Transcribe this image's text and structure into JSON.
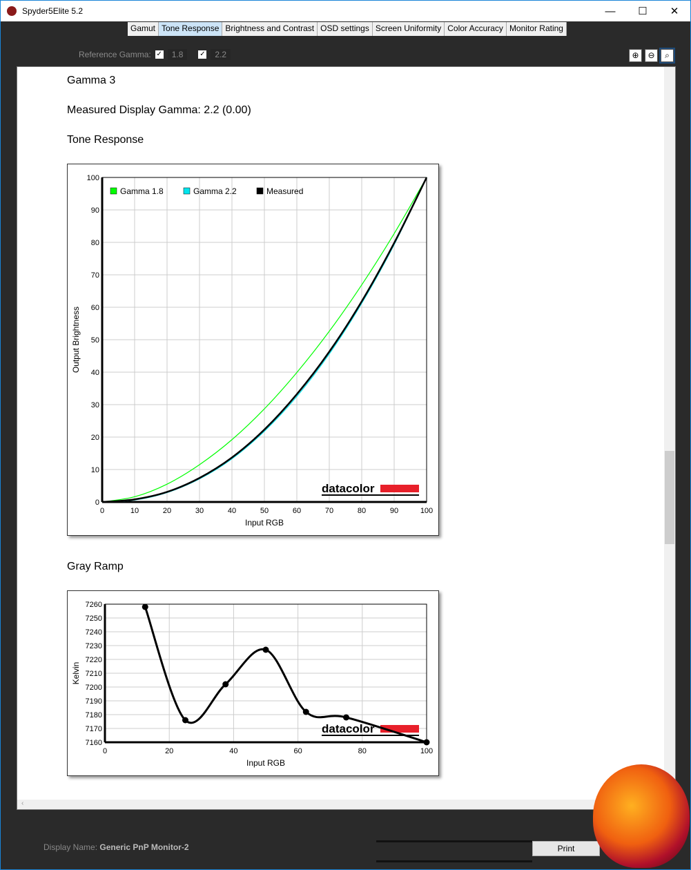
{
  "window": {
    "title": "Spyder5Elite 5.2",
    "minimize": "—",
    "maximize": "☐",
    "close": "✕"
  },
  "tabs": [
    {
      "label": "Gamut"
    },
    {
      "label": "Tone Response",
      "active": true
    },
    {
      "label": "Brightness and Contrast"
    },
    {
      "label": "OSD settings"
    },
    {
      "label": "Screen Uniformity"
    },
    {
      "label": "Color Accuracy"
    },
    {
      "label": "Monitor Rating"
    }
  ],
  "reference": {
    "label": "Reference Gamma:",
    "options": [
      {
        "value": "1.8",
        "checked": true
      },
      {
        "value": "2.2",
        "checked": true
      }
    ]
  },
  "zoom": {
    "in": "⊕",
    "out": "⊖",
    "fit": "🔍"
  },
  "content": {
    "heading": "Gamma 3",
    "measured": "Measured Display Gamma: 2.2 (0.00)",
    "tone_title": "Tone Response",
    "gray_title": "Gray Ramp"
  },
  "chart_data": [
    {
      "type": "line",
      "xlabel": "Input RGB",
      "ylabel": "Output Brightness",
      "xlim": [
        0,
        100
      ],
      "ylim": [
        0,
        100
      ],
      "xticks": [
        0,
        10,
        20,
        30,
        40,
        50,
        60,
        70,
        80,
        90,
        100
      ],
      "yticks": [
        0,
        10,
        20,
        30,
        40,
        50,
        60,
        70,
        80,
        90,
        100
      ],
      "grid": true,
      "legend": "top-left",
      "x": [
        0,
        10,
        20,
        30,
        40,
        50,
        60,
        70,
        80,
        90,
        100
      ],
      "series": [
        {
          "name": "Gamma 1.8",
          "color": "#00ff00",
          "values": [
            0,
            1.6,
            5.5,
            11.5,
            19.2,
            28.7,
            39.9,
            52.6,
            66.9,
            82.7,
            100
          ]
        },
        {
          "name": "Gamma 2.2",
          "color": "#00e5ee",
          "values": [
            0,
            0.6,
            2.9,
            7.1,
            13.3,
            21.8,
            32.5,
            45.6,
            61.2,
            79.3,
            100
          ]
        },
        {
          "name": "Measured",
          "color": "#000000",
          "values": [
            0,
            0.8,
            3.1,
            7.4,
            13.7,
            22.3,
            33.2,
            46.3,
            61.8,
            79.8,
            100
          ]
        }
      ],
      "watermark": "datacolor"
    },
    {
      "type": "line",
      "xlabel": "Input RGB",
      "ylabel": "Kelvin",
      "xlim": [
        0,
        100
      ],
      "ylim": [
        7160,
        7260
      ],
      "xticks": [
        0,
        20,
        40,
        60,
        80,
        100
      ],
      "yticks": [
        7160,
        7170,
        7180,
        7190,
        7200,
        7210,
        7220,
        7230,
        7240,
        7250,
        7260
      ],
      "grid": true,
      "x": [
        12.5,
        25,
        37.5,
        50,
        62.5,
        75,
        100
      ],
      "values": [
        7258,
        7176,
        7202,
        7227,
        7182,
        7178,
        7160
      ],
      "watermark": "datacolor"
    }
  ],
  "footer": {
    "display_label": "Display Name:",
    "display_name": "Generic PnP Monitor-2",
    "print": "Print"
  },
  "colors": {
    "brand_red": "#e8202a",
    "tab_active": "#cce4f7"
  }
}
